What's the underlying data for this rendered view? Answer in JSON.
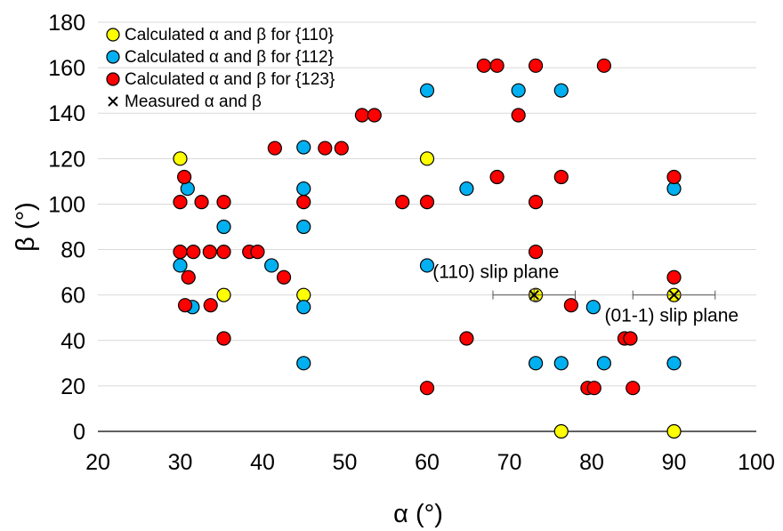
{
  "chart_data": {
    "type": "scatter",
    "xlabel": "α (°)",
    "ylabel": "β (°)",
    "xlim": [
      20,
      100
    ],
    "ylim": [
      0,
      180
    ],
    "xticks": [
      20,
      30,
      40,
      50,
      60,
      70,
      80,
      90,
      100
    ],
    "yticks": [
      0,
      20,
      40,
      60,
      80,
      100,
      120,
      140,
      160,
      180
    ],
    "grid": "horizontal",
    "legend_position": "top-left",
    "series": [
      {
        "name": "Calculated  α and β for {110}",
        "color": "#ffff00",
        "marker": "circle",
        "points": [
          [
            30,
            120
          ],
          [
            35.3,
            60
          ],
          [
            45,
            60
          ],
          [
            60,
            120
          ],
          [
            73.2,
            60
          ],
          [
            76.3,
            0
          ],
          [
            90,
            60
          ],
          [
            90,
            0
          ]
        ]
      },
      {
        "name": "Calculated α and β for {112}",
        "color": "#00b0f0",
        "marker": "circle",
        "points": [
          [
            30,
            73
          ],
          [
            30.9,
            106.8
          ],
          [
            31.5,
            54.7
          ],
          [
            35.3,
            90
          ],
          [
            41.1,
            73
          ],
          [
            45,
            125
          ],
          [
            45,
            106.8
          ],
          [
            45,
            90
          ],
          [
            45,
            54.7
          ],
          [
            45,
            30
          ],
          [
            60,
            150
          ],
          [
            60,
            73
          ],
          [
            64.8,
            106.8
          ],
          [
            71.1,
            150
          ],
          [
            73.2,
            30
          ],
          [
            76.3,
            150
          ],
          [
            76.3,
            30
          ],
          [
            80.2,
            54.7
          ],
          [
            81.5,
            30
          ],
          [
            90,
            106.8
          ],
          [
            90,
            30
          ]
        ]
      },
      {
        "name": "Calculated α and β for {123}",
        "color": "#ff0000",
        "marker": "circle",
        "points": [
          [
            30,
            100.9
          ],
          [
            30,
            79
          ],
          [
            30.5,
            111.9
          ],
          [
            30.6,
            55.5
          ],
          [
            31,
            67.8
          ],
          [
            31.6,
            79
          ],
          [
            32.6,
            100.9
          ],
          [
            33.6,
            79
          ],
          [
            33.7,
            55.5
          ],
          [
            35.3,
            100.9
          ],
          [
            35.3,
            79
          ],
          [
            35.3,
            40.9
          ],
          [
            38.4,
            79
          ],
          [
            39.4,
            79
          ],
          [
            41.5,
            124.6
          ],
          [
            42.6,
            67.8
          ],
          [
            47.6,
            124.6
          ],
          [
            49.6,
            124.6
          ],
          [
            45,
            100.9
          ],
          [
            52.1,
            139.1
          ],
          [
            53.6,
            139.1
          ],
          [
            57,
            100.9
          ],
          [
            60,
            100.9
          ],
          [
            60,
            19.1
          ],
          [
            64.8,
            40.9
          ],
          [
            66.9,
            160.9
          ],
          [
            68.5,
            160.9
          ],
          [
            68.5,
            111.9
          ],
          [
            71.1,
            139.1
          ],
          [
            73.2,
            160.9
          ],
          [
            73.2,
            100.9
          ],
          [
            73.2,
            79
          ],
          [
            76.3,
            111.9
          ],
          [
            77.5,
            55.5
          ],
          [
            79.5,
            19.1
          ],
          [
            80.3,
            19.1
          ],
          [
            81.5,
            160.9
          ],
          [
            84,
            40.9
          ],
          [
            84.7,
            40.9
          ],
          [
            85,
            19.1
          ],
          [
            90,
            111.9
          ],
          [
            90,
            67.8
          ]
        ]
      },
      {
        "name": "Measured α and β",
        "color": "#000000",
        "marker": "x",
        "points": [
          [
            73,
            60
          ],
          [
            90,
            60
          ]
        ],
        "x_error": [
          5,
          5
        ],
        "y_error": [
          2.5,
          0
        ]
      }
    ],
    "annotations": [
      {
        "text": "(110) slip plane",
        "x": 73,
        "y": 60
      },
      {
        "text": "(01-1) slip plane",
        "x": 90,
        "y": 60
      }
    ]
  }
}
